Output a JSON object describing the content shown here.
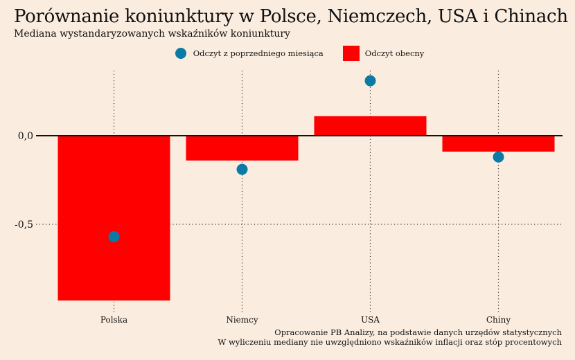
{
  "chart_data": {
    "type": "bar",
    "title": "Porównanie koniunktury w Polsce, Niemczech, USA i Chinach",
    "subtitle": "Mediana wystandaryzowanych wskaźników koniunktury",
    "categories": [
      "Polska",
      "Niemcy",
      "USA",
      "Chiny"
    ],
    "series": [
      {
        "name": "Odczyt obecny",
        "values": [
          -0.93,
          -0.14,
          0.11,
          -0.09
        ],
        "color": "#ff0000",
        "mark": "bar"
      },
      {
        "name": "Odczyt z poprzedniego miesiąca",
        "values": [
          -0.57,
          -0.19,
          0.31,
          -0.12
        ],
        "color": "#0b7aa6",
        "mark": "point"
      }
    ],
    "ylim": [
      -0.97,
      0.37
    ],
    "yticks": [
      0.0,
      -0.5
    ],
    "ytick_labels": [
      "0,0",
      "-0,5"
    ],
    "grid": "dotted",
    "legend_position": "top",
    "caption": [
      "Opracowanie PB Analizy, na podstawie danych urzędów statystycznych",
      "W wyliczeniu mediany nie uwzględniono wskaźników inflacji oraz stóp procentowych"
    ]
  }
}
